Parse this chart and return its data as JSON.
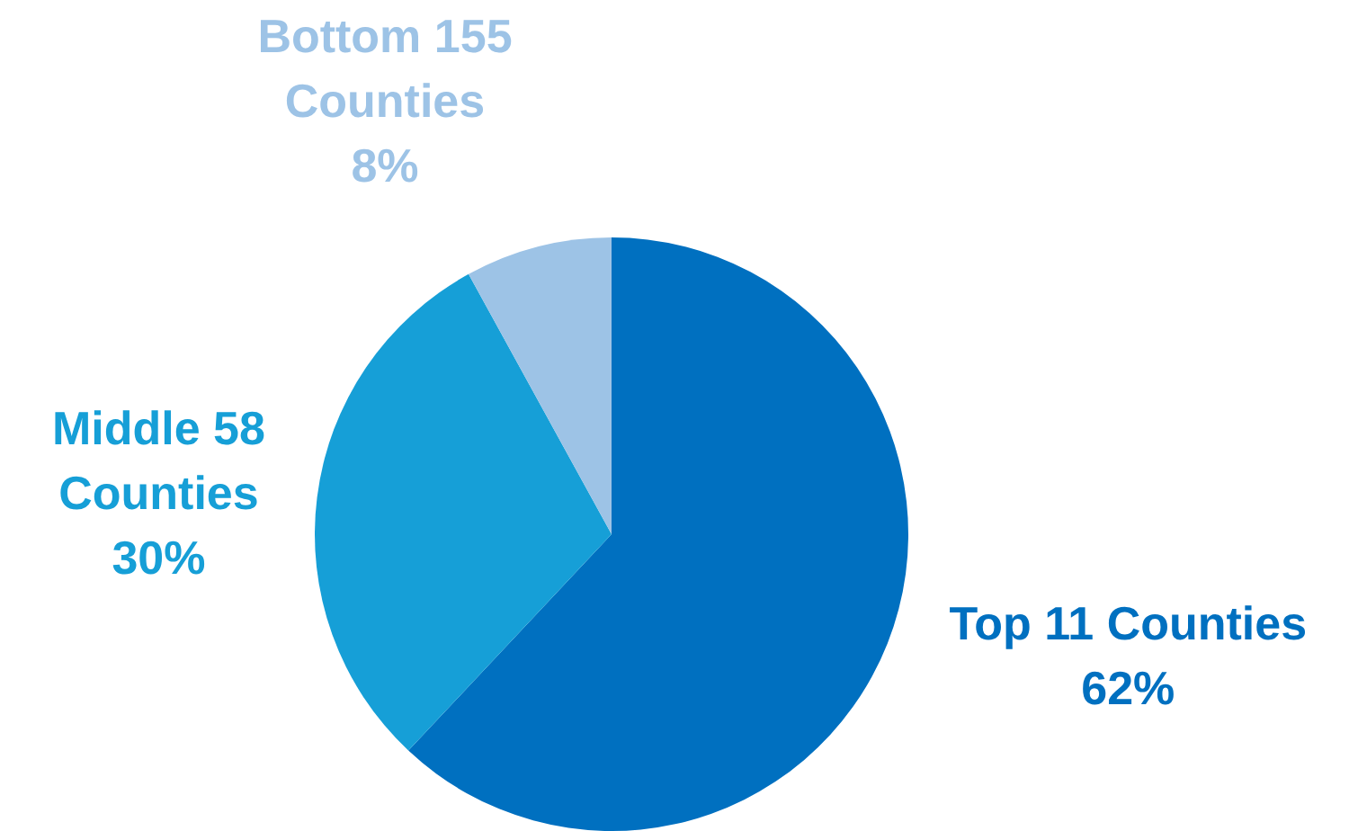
{
  "chart_data": {
    "type": "pie",
    "categories": [
      "Top 11 Counties",
      "Middle 58 Counties",
      "Bottom 155 Counties"
    ],
    "values": [
      62,
      30,
      8
    ],
    "colors": [
      "#0070c0",
      "#169fd7",
      "#9dc3e6"
    ],
    "value_labels": [
      "62%",
      "30%",
      "8%"
    ]
  }
}
